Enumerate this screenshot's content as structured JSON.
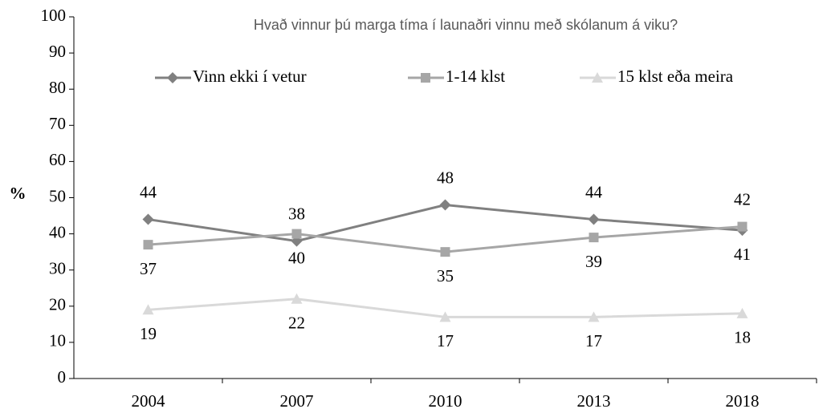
{
  "chart_data": {
    "type": "line",
    "title": "Hvað vinnur þú marga tíma í launaðri vinnu með skólanum á viku?",
    "y_label": "%",
    "categories": [
      "2004",
      "2007",
      "2010",
      "2013",
      "2018"
    ],
    "series": [
      {
        "name": "Vinn ekki í vetur",
        "color": "#808080",
        "marker": "diamond",
        "values": [
          44,
          38,
          48,
          44,
          41
        ]
      },
      {
        "name": "1-14 klst",
        "color": "#a6a6a6",
        "marker": "square",
        "values": [
          37,
          40,
          35,
          39,
          42
        ]
      },
      {
        "name": "15 klst eða meira",
        "color": "#d9d9d9",
        "marker": "triangle",
        "values": [
          19,
          22,
          17,
          17,
          18
        ]
      }
    ],
    "ylim": [
      0,
      100
    ],
    "yticks": [
      0,
      10,
      20,
      30,
      40,
      50,
      60,
      70,
      80,
      90,
      100
    ],
    "grid": false,
    "legend": "top"
  }
}
